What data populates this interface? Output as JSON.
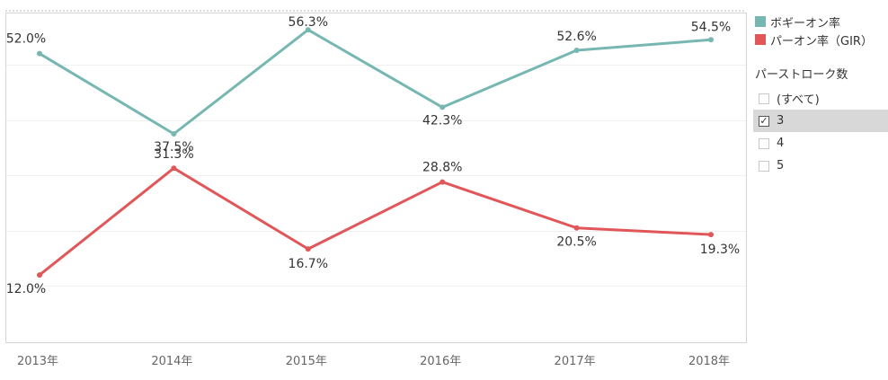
{
  "chart_data": {
    "type": "line",
    "categories": [
      "2013年",
      "2014年",
      "2015年",
      "2016年",
      "2017年",
      "2018年"
    ],
    "series": [
      {
        "name": "ボギーオン率",
        "color": "#76b7b2",
        "values": [
          52.0,
          37.5,
          56.3,
          42.3,
          52.6,
          54.5
        ],
        "labels": [
          "52.0%",
          "37.5%",
          "56.3%",
          "42.3%",
          "52.6%",
          "54.5%"
        ]
      },
      {
        "name": "パーオン率（GIR）",
        "color": "#e15759",
        "values": [
          12.0,
          31.3,
          16.7,
          28.8,
          20.5,
          19.3
        ],
        "labels": [
          "12.0%",
          "31.3%",
          "16.7%",
          "28.8%",
          "20.5%",
          "19.3%"
        ]
      }
    ],
    "ylim": [
      0,
      58
    ],
    "grid": true,
    "legend_position": "right"
  },
  "filter": {
    "title": "パーストローク数",
    "items": [
      {
        "label": "(すべて)",
        "checked": false
      },
      {
        "label": "3",
        "checked": true
      },
      {
        "label": "4",
        "checked": false
      },
      {
        "label": "5",
        "checked": false
      }
    ],
    "check_mark": "✓"
  }
}
